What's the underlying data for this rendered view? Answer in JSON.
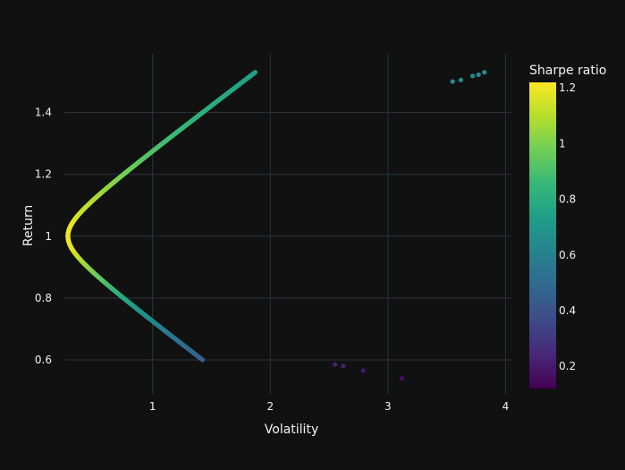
{
  "chart_data": {
    "type": "scatter",
    "title": "",
    "xlabel": "Volatility",
    "ylabel": "Return",
    "xlim": [
      0.25,
      4.05
    ],
    "ylim": [
      0.49,
      1.59
    ],
    "x_ticks": [
      1,
      2,
      3,
      4
    ],
    "x_tick_labels": [
      "1",
      "2",
      "3",
      "4"
    ],
    "y_ticks": [
      0.6,
      0.8,
      1.0,
      1.2,
      1.4
    ],
    "y_tick_labels": [
      "0.6",
      "0.8",
      "1",
      "1.2",
      "1.4"
    ],
    "grid": true,
    "background": "#111111",
    "grid_color": "#283442",
    "colorscale": "viridis",
    "colorbar": {
      "title": "Sharpe ratio",
      "range": [
        0.12,
        1.22
      ],
      "ticks": [
        0.2,
        0.4,
        0.6,
        0.8,
        1.0,
        1.2
      ],
      "tick_labels": [
        "0.2",
        "0.4",
        "0.6",
        "0.8",
        "1",
        "1.2"
      ],
      "position": "right"
    },
    "frontier": {
      "min_volatility_return": 1.0,
      "min_volatility": 0.28,
      "return_range": [
        0.6,
        1.53
      ],
      "color_metric": "Sharpe ratio"
    },
    "sparse_points": [
      {
        "x": 2.55,
        "y": 0.585
      },
      {
        "x": 2.62,
        "y": 0.58
      },
      {
        "x": 2.79,
        "y": 0.565
      },
      {
        "x": 3.12,
        "y": 0.54
      },
      {
        "x": 3.55,
        "y": 1.5
      },
      {
        "x": 3.62,
        "y": 1.505
      },
      {
        "x": 3.72,
        "y": 1.518
      },
      {
        "x": 3.77,
        "y": 1.522
      },
      {
        "x": 3.82,
        "y": 1.53
      }
    ]
  }
}
